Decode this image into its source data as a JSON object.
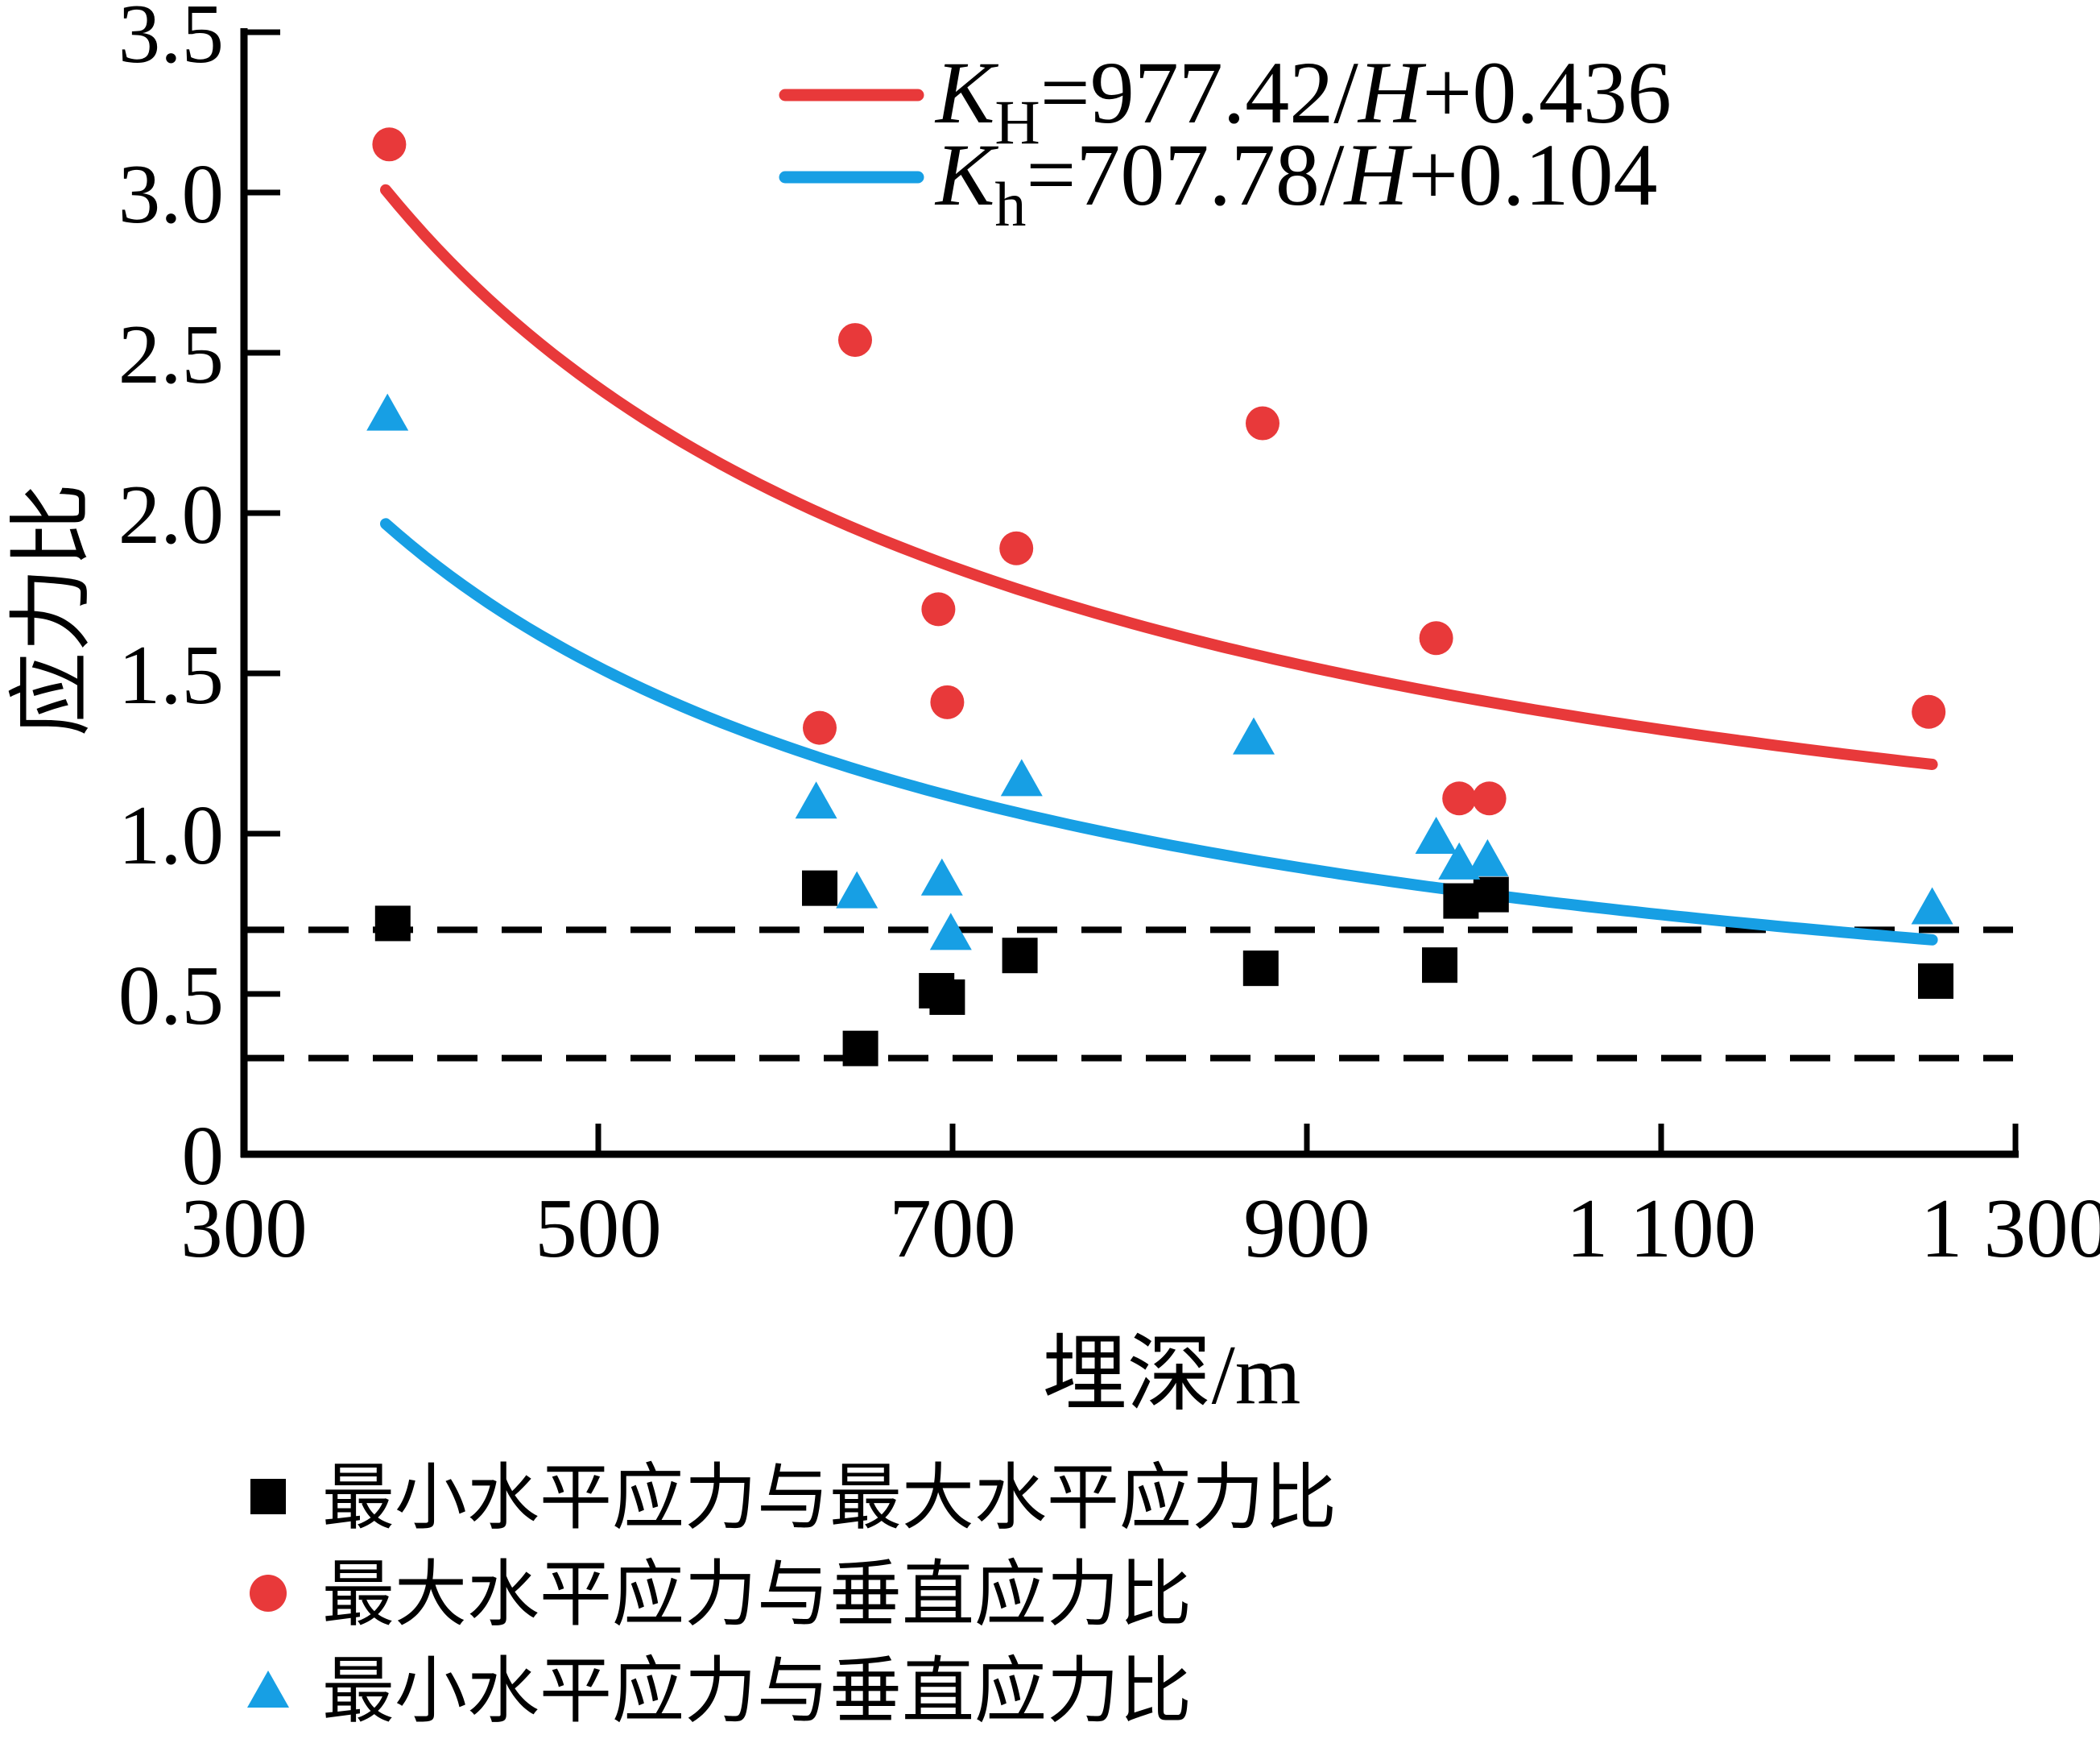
{
  "figure": {
    "background": "#ffffff",
    "colors": {
      "red": "#e8393a",
      "blue": "#179fe4",
      "black": "#000000"
    }
  },
  "axes": {
    "x": {
      "title": "埋深/m",
      "min": 300,
      "max": 1300,
      "ticks": [
        300,
        500,
        700,
        900,
        1100,
        1300
      ],
      "tick_labels": [
        "300",
        "500",
        "700",
        "900",
        "1 100",
        "1 300"
      ]
    },
    "y": {
      "title": "应力比",
      "min": 0,
      "max": 3.5,
      "ticks": [
        0,
        0.5,
        1.0,
        1.5,
        2.0,
        2.5,
        3.0,
        3.5
      ],
      "tick_labels": [
        "0",
        "0.5",
        "1.0",
        "1.5",
        "2.0",
        "2.5",
        "3.0",
        "3.5"
      ]
    }
  },
  "chart_data": {
    "type": "scatter",
    "title": "",
    "xlabel": "埋深/m",
    "ylabel": "应力比",
    "xlim": [
      300,
      1300
    ],
    "ylim": [
      0,
      3.5
    ],
    "grid": false,
    "legend_position": "below",
    "series": [
      {
        "name": "最小水平应力与最大水平应力比",
        "marker": "square",
        "color": "#000000",
        "points": [
          [
            384,
            0.72
          ],
          [
            625,
            0.83
          ],
          [
            648,
            0.33
          ],
          [
            691,
            0.51
          ],
          [
            697,
            0.49
          ],
          [
            738,
            0.62
          ],
          [
            874,
            0.58
          ],
          [
            975,
            0.59
          ],
          [
            987,
            0.79
          ],
          [
            1004,
            0.81
          ],
          [
            1255,
            0.54
          ]
        ]
      },
      {
        "name": "最大水平应力与垂直应力比",
        "marker": "circle",
        "color": "#e8393a",
        "points": [
          [
            382,
            3.15
          ],
          [
            625,
            1.33
          ],
          [
            645,
            2.54
          ],
          [
            692,
            1.7
          ],
          [
            697,
            1.41
          ],
          [
            736,
            1.89
          ],
          [
            875,
            2.28
          ],
          [
            973,
            1.61
          ],
          [
            986,
            1.11
          ],
          [
            1003,
            1.11
          ],
          [
            1251,
            1.38
          ]
        ]
      },
      {
        "name": "最小水平应力与垂直应力比",
        "marker": "triangle",
        "color": "#179fe4",
        "points": [
          [
            381,
            2.31
          ],
          [
            623,
            1.1
          ],
          [
            646,
            0.82
          ],
          [
            694,
            0.86
          ],
          [
            699,
            0.69
          ],
          [
            739,
            1.17
          ],
          [
            870,
            1.3
          ],
          [
            973,
            0.99
          ],
          [
            986,
            0.91
          ],
          [
            1002,
            0.92
          ],
          [
            1253,
            0.77
          ]
        ]
      }
    ],
    "fit_lines": [
      {
        "label": "KH=977.42/H+0.436",
        "color": "#e8393a",
        "a": 977.42,
        "b": 0.436,
        "domain": [
          380,
          1253
        ],
        "eq": {
          "K": "K",
          "sub": "H",
          "mid": "=977.42/",
          "var": "H",
          "tail": "+0.436"
        }
      },
      {
        "label": "Kh=707.78/H+0.104",
        "color": "#179fe4",
        "a": 707.78,
        "b": 0.104,
        "domain": [
          380,
          1253
        ],
        "eq": {
          "K": "K",
          "sub": "h",
          "mid": "=707.78/",
          "var": "H",
          "tail": "+0.104"
        }
      }
    ],
    "dashed_hlines": [
      0.7,
      0.3
    ]
  }
}
